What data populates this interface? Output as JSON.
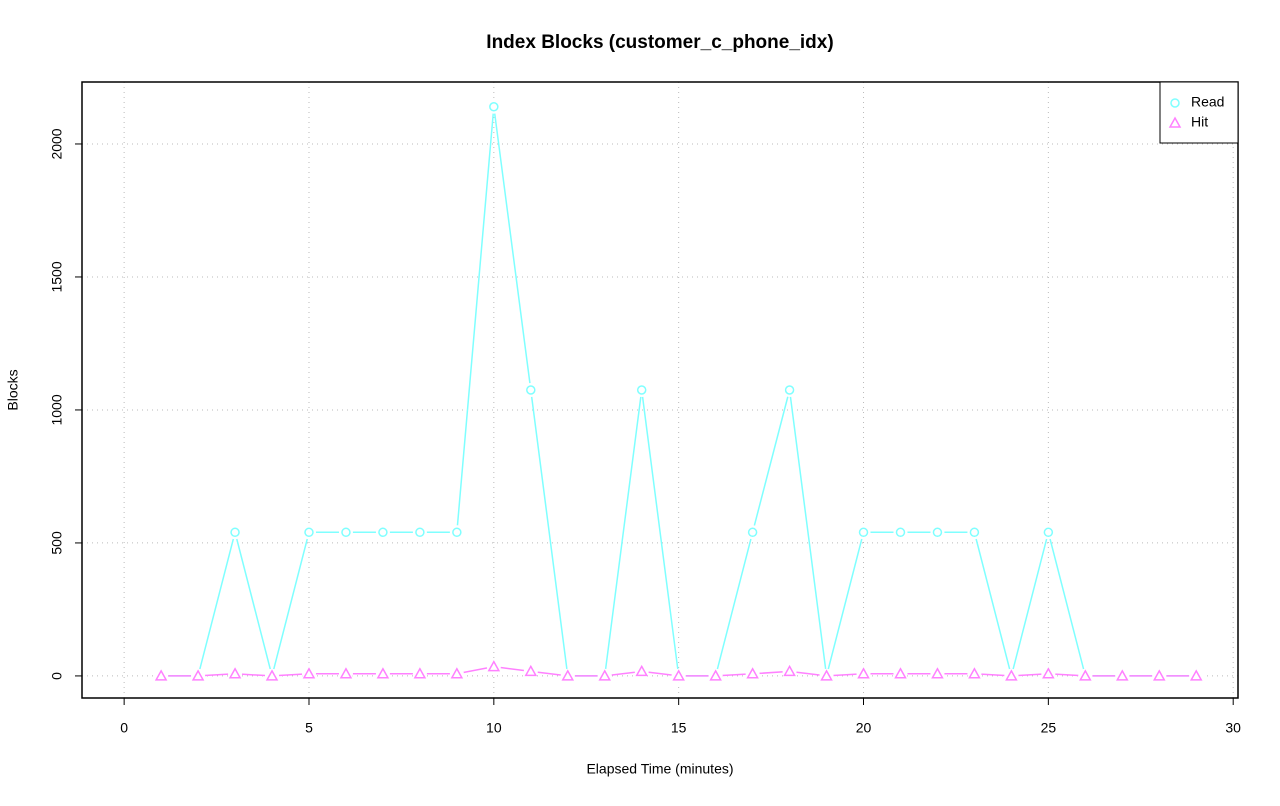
{
  "chart_data": {
    "type": "line",
    "title": "Index Blocks (customer_c_phone_idx)",
    "x_label": "Elapsed Time (minutes)",
    "y_label": "Blocks",
    "x": [
      1,
      2,
      3,
      4,
      5,
      6,
      7,
      8,
      9,
      10,
      11,
      12,
      13,
      14,
      15,
      16,
      17,
      18,
      19,
      20,
      21,
      22,
      23,
      24,
      25,
      26,
      27,
      28,
      29
    ],
    "series": [
      {
        "name": "Read",
        "color": "#7fffff",
        "marker": "circle",
        "values": [
          0,
          0,
          540,
          0,
          540,
          540,
          540,
          540,
          540,
          2140,
          1075,
          0,
          0,
          1075,
          0,
          0,
          540,
          1075,
          0,
          540,
          540,
          540,
          540,
          0,
          540,
          0,
          0,
          0,
          0
        ]
      },
      {
        "name": "Hit",
        "color": "#ff80ff",
        "marker": "triangle",
        "values": [
          0,
          0,
          8,
          0,
          8,
          8,
          8,
          8,
          8,
          35,
          17,
          0,
          0,
          17,
          0,
          0,
          8,
          17,
          0,
          8,
          8,
          8,
          8,
          0,
          8,
          0,
          0,
          0,
          0
        ]
      }
    ],
    "xlim": [
      -1.14,
      30.13
    ],
    "ylim": [
      -83,
      2233
    ],
    "xticks": [
      0,
      5,
      10,
      15,
      20,
      25,
      30
    ],
    "yticks": [
      0,
      500,
      1000,
      1500,
      2000
    ],
    "grid": true,
    "legend_position": "top-right"
  }
}
